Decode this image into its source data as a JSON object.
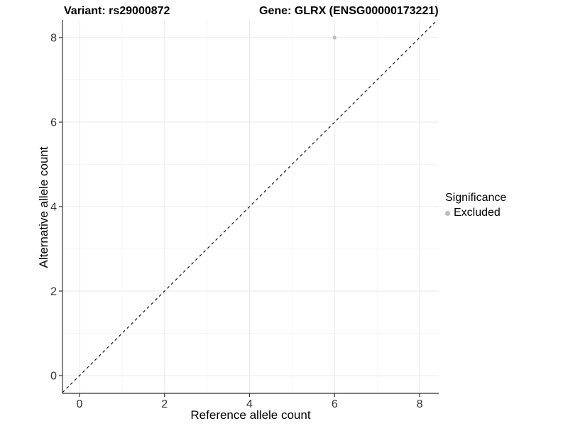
{
  "chart_data": {
    "type": "scatter",
    "title_left": "Variant: rs29000872",
    "title_right": "Gene: GLRX (ENSG00000173221)",
    "xlabel": "Reference allele count",
    "ylabel": "Alternative allele count",
    "xlim": [
      -0.4,
      8.45
    ],
    "ylim": [
      -0.42,
      8.42
    ],
    "x_ticks": [
      0,
      2,
      4,
      6,
      8
    ],
    "y_ticks": [
      0,
      2,
      4,
      6,
      8
    ],
    "x_minor_ticks": [
      1,
      3,
      5,
      7
    ],
    "y_minor_ticks": [
      1,
      3,
      5,
      7
    ],
    "grid": {
      "shown": true,
      "major_color": "#e9e9e9",
      "minor_color": "#f5f5f5"
    },
    "axis_color": "#333333",
    "tick_label_color": "#333333",
    "series": [
      {
        "name": "Excluded",
        "color": "#bdbdbd",
        "marker": "circle",
        "points": [
          [
            6,
            8
          ]
        ]
      }
    ],
    "reference_line": {
      "type": "identity y=x",
      "style": "dashed",
      "color": "#000000"
    },
    "legend": {
      "title": "Significance",
      "position": "right",
      "entries": [
        {
          "label": "Excluded",
          "color": "#bdbdbd"
        }
      ]
    }
  }
}
